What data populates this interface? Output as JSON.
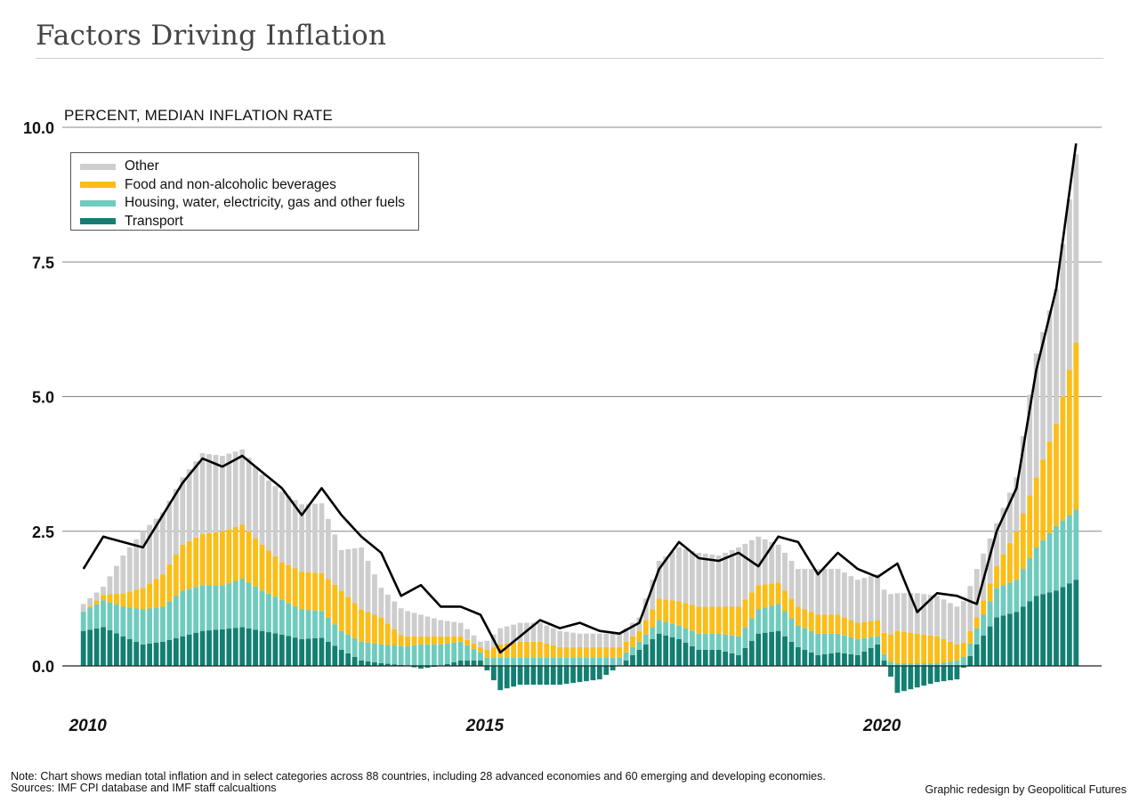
{
  "title": "Factors Driving Inflation",
  "subtitle": "PERCENT, MEDIAN INFLATION RATE",
  "note": "Note: Chart shows median total inflation and in select categories across 88 countries, including 28 advanced economies and 60 emerging and developing economies.",
  "sources": "Sources: IMF CPI database and IMF staff calcualtions",
  "credit": "Graphic redesign by Geopolitical Futures",
  "colors": {
    "transport": "#137f72",
    "housing": "#6fcbbd",
    "food": "#fbbd17",
    "other": "#cdcdcd",
    "total_line": "#000000",
    "grid": "#888888"
  },
  "chart_data": {
    "type": "bar",
    "stacked": true,
    "title": "Factors Driving Inflation",
    "ylabel": "PERCENT, MEDIAN INFLATION RATE",
    "ylim": [
      -1.0,
      10.0
    ],
    "yticks": [
      "0.0",
      "2.5",
      "5.0",
      "7.5",
      "10.0"
    ],
    "ytick_values": [
      0,
      2.5,
      5,
      7.5,
      10
    ],
    "xticks": [
      "2010",
      "2015",
      "2020"
    ],
    "xtick_years": [
      2010,
      2015,
      2020
    ],
    "grid": true,
    "legend_position": "top-left",
    "x_start": "2010-01",
    "x_end": "2022-07",
    "frequency": "monthly",
    "anchor_dates": [
      "2010-01",
      "2010-04",
      "2010-07",
      "2010-10",
      "2011-01",
      "2011-04",
      "2011-07",
      "2011-10",
      "2012-01",
      "2012-04",
      "2012-07",
      "2012-10",
      "2013-01",
      "2013-04",
      "2013-07",
      "2013-10",
      "2014-01",
      "2014-04",
      "2014-07",
      "2014-10",
      "2015-01",
      "2015-04",
      "2015-07",
      "2015-10",
      "2016-01",
      "2016-04",
      "2016-07",
      "2016-10",
      "2017-01",
      "2017-04",
      "2017-07",
      "2017-10",
      "2018-01",
      "2018-04",
      "2018-07",
      "2018-10",
      "2019-01",
      "2019-04",
      "2019-07",
      "2019-10",
      "2020-01",
      "2020-04",
      "2020-07",
      "2020-10",
      "2021-01",
      "2021-04",
      "2021-07",
      "2021-10",
      "2022-01",
      "2022-04",
      "2022-07"
    ],
    "series": [
      {
        "name": "Transport",
        "values": [
          0.65,
          0.72,
          0.55,
          0.4,
          0.45,
          0.55,
          0.65,
          0.68,
          0.72,
          0.65,
          0.58,
          0.5,
          0.52,
          0.3,
          0.1,
          0.05,
          0.02,
          -0.05,
          0.0,
          0.1,
          0.1,
          -0.45,
          -0.35,
          -0.35,
          -0.35,
          -0.3,
          -0.25,
          0.0,
          0.3,
          0.6,
          0.5,
          0.3,
          0.3,
          0.2,
          0.6,
          0.65,
          0.35,
          0.2,
          0.25,
          0.2,
          0.4,
          -0.5,
          -0.4,
          -0.3,
          -0.25,
          0.4,
          0.9,
          1.0,
          1.3,
          1.4,
          1.6
        ]
      },
      {
        "name": "Housing, water, electricity, gas and other fuels",
        "values": [
          0.35,
          0.5,
          0.55,
          0.65,
          0.65,
          0.85,
          0.85,
          0.82,
          0.9,
          0.75,
          0.65,
          0.55,
          0.5,
          0.35,
          0.35,
          0.35,
          0.35,
          0.4,
          0.4,
          0.35,
          0.15,
          0.15,
          0.15,
          0.15,
          0.15,
          0.15,
          0.15,
          0.15,
          0.15,
          0.25,
          0.25,
          0.3,
          0.3,
          0.35,
          0.45,
          0.5,
          0.4,
          0.4,
          0.35,
          0.3,
          0.15,
          0.05,
          0.05,
          0.05,
          0.1,
          0.3,
          0.55,
          0.6,
          0.9,
          1.2,
          1.3
        ]
      },
      {
        "name": "Food and non-alcoholic beverages",
        "values": [
          0.0,
          0.1,
          0.25,
          0.4,
          0.6,
          0.85,
          0.95,
          1.0,
          1.0,
          0.85,
          0.7,
          0.7,
          0.7,
          0.75,
          0.6,
          0.5,
          0.2,
          0.15,
          0.15,
          0.1,
          0.1,
          0.25,
          0.3,
          0.3,
          0.2,
          0.2,
          0.2,
          0.2,
          0.2,
          0.4,
          0.45,
          0.5,
          0.5,
          0.55,
          0.45,
          0.4,
          0.35,
          0.35,
          0.35,
          0.3,
          0.3,
          0.6,
          0.55,
          0.5,
          0.3,
          0.2,
          0.4,
          0.9,
          1.3,
          1.9,
          3.1
        ]
      },
      {
        "name": "Other",
        "values": [
          0.15,
          0.15,
          0.7,
          1.05,
          1.15,
          1.25,
          1.5,
          1.4,
          1.4,
          1.3,
          1.3,
          1.25,
          1.3,
          0.75,
          1.15,
          0.55,
          0.5,
          0.4,
          0.3,
          0.25,
          0.1,
          0.3,
          0.35,
          0.35,
          0.3,
          0.25,
          0.25,
          0.25,
          0.25,
          0.7,
          1.0,
          1.0,
          0.95,
          1.1,
          0.9,
          0.7,
          0.7,
          0.85,
          0.85,
          0.8,
          0.85,
          0.7,
          0.75,
          0.75,
          0.7,
          0.9,
          0.8,
          1.0,
          2.3,
          2.5,
          3.5
        ]
      },
      {
        "name": "Total",
        "values": [
          1.8,
          2.4,
          2.3,
          2.2,
          2.8,
          3.4,
          3.85,
          3.7,
          3.9,
          3.6,
          3.3,
          2.8,
          3.3,
          2.8,
          2.4,
          2.1,
          1.3,
          1.5,
          1.1,
          1.1,
          0.95,
          0.25,
          0.55,
          0.85,
          0.7,
          0.8,
          0.65,
          0.6,
          0.8,
          1.8,
          2.3,
          2.0,
          1.95,
          2.1,
          1.85,
          2.4,
          2.3,
          1.7,
          2.1,
          1.8,
          1.65,
          1.9,
          1.0,
          1.35,
          1.3,
          1.15,
          2.5,
          3.3,
          5.5,
          7.0,
          9.7
        ]
      }
    ]
  }
}
